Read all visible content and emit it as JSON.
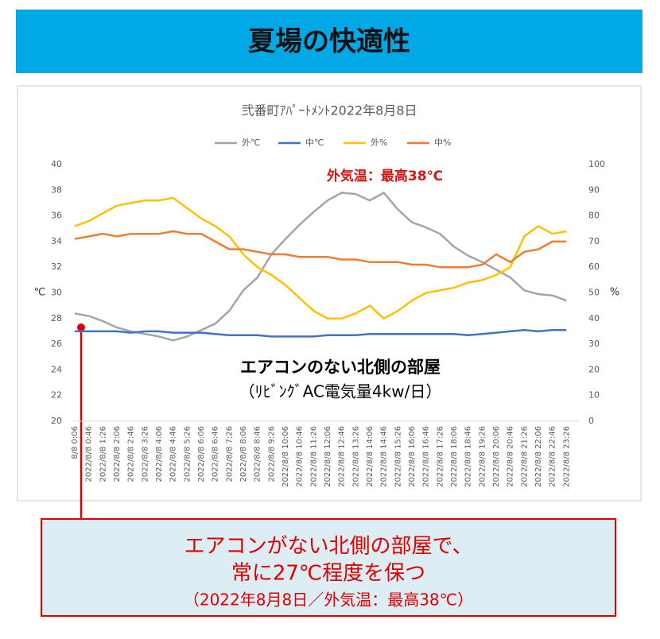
{
  "header": {
    "title": "夏場の快適性"
  },
  "chart_data": {
    "type": "line",
    "title": "弐番町ｱﾊﾟｰﾄﾒﾝﾄ2022年8月8日",
    "ylabel": "℃",
    "y2label": "%",
    "categories": [
      "8/8 0:06",
      "2022/8/8 0:46",
      "2022/8/8 1:26",
      "2022/8/8 2:06",
      "2022/8/8 2:46",
      "2022/8/8 3:26",
      "2022/8/8 4:06",
      "2022/8/8 4:46",
      "2022/8/8 5:26",
      "2022/8/8 6:06",
      "2022/8/8 6:46",
      "2022/8/8 7:26",
      "2022/8/8 8:06",
      "2022/8/8 8:46",
      "2022/8/8 9:26",
      "2022/8/8 10:06",
      "2022/8/8 10:46",
      "2022/8/8 11:26",
      "2022/8/8 12:06",
      "2022/8/8 12:46",
      "2022/8/8 13:26",
      "2022/8/8 14:06",
      "2022/8/8 14:46",
      "2022/8/8 15:26",
      "2022/8/8 16:06",
      "2022/8/8 16:46",
      "2022/8/8 17:26",
      "2022/8/8 18:06",
      "2022/8/8 18:46",
      "2022/8/8 19:26",
      "2022/8/8 20:06",
      "2022/8/8 20:46",
      "2022/8/8 21:26",
      "2022/8/8 22:06",
      "2022/8/8 22:46",
      "2022/8/8 23:26"
    ],
    "series": [
      {
        "name": "外℃",
        "color": "#a5a5a5",
        "axis": "y",
        "values": [
          28.4,
          28.2,
          27.8,
          27.3,
          27.0,
          26.8,
          26.6,
          26.3,
          26.6,
          27.1,
          27.6,
          28.6,
          30.2,
          31.2,
          33.0,
          34.2,
          35.3,
          36.3,
          37.2,
          37.8,
          37.7,
          37.2,
          37.8,
          36.5,
          35.5,
          35.1,
          34.6,
          33.6,
          32.9,
          32.4,
          31.8,
          31.2,
          30.2,
          29.9,
          29.8,
          29.4
        ]
      },
      {
        "name": "中℃",
        "color": "#4472c4",
        "axis": "y",
        "values": [
          27.0,
          27.0,
          27.0,
          27.0,
          26.9,
          27.0,
          27.0,
          26.9,
          26.9,
          26.9,
          26.8,
          26.7,
          26.7,
          26.7,
          26.6,
          26.6,
          26.6,
          26.6,
          26.7,
          26.7,
          26.7,
          26.8,
          26.8,
          26.8,
          26.8,
          26.8,
          26.8,
          26.8,
          26.7,
          26.8,
          26.9,
          27.0,
          27.1,
          27.0,
          27.1,
          27.1
        ]
      },
      {
        "name": "外%",
        "color": "#ffc000",
        "axis": "y2",
        "values": [
          76,
          78,
          81,
          84,
          85,
          86,
          86,
          87,
          83,
          79,
          76,
          72,
          65,
          60,
          57,
          53,
          48,
          43,
          40,
          40,
          42,
          45,
          40,
          43,
          47,
          50,
          51,
          52,
          54,
          55,
          57,
          60,
          72,
          76,
          73,
          74
        ]
      },
      {
        "name": "中%",
        "color": "#ed7d31",
        "axis": "y2",
        "values": [
          71,
          72,
          73,
          72,
          73,
          73,
          73,
          74,
          73,
          73,
          70,
          67,
          67,
          66,
          65,
          65,
          64,
          64,
          64,
          63,
          63,
          62,
          62,
          62,
          61,
          61,
          60,
          60,
          60,
          61,
          65,
          62,
          66,
          67,
          70,
          70
        ]
      }
    ],
    "ylim": [
      20,
      40
    ],
    "yticks": [
      20,
      22,
      24,
      26,
      28,
      30,
      32,
      34,
      36,
      38,
      40
    ],
    "y2lim": [
      0,
      100
    ],
    "y2ticks": [
      0,
      10,
      20,
      30,
      40,
      50,
      60,
      70,
      80,
      90,
      100
    ],
    "grid": false,
    "legend": "top",
    "annotations": [
      "外気温：最高38℃",
      "エアコンのない北側の部屋",
      "（ﾘﾋﾞﾝｸﾞAC電気量4kw/日）"
    ]
  },
  "callout": {
    "lines": [
      "エアコンがない北側の部屋で、",
      "常に27℃程度を保つ",
      "（2022年8月8日／外気温：最高38℃）"
    ]
  }
}
